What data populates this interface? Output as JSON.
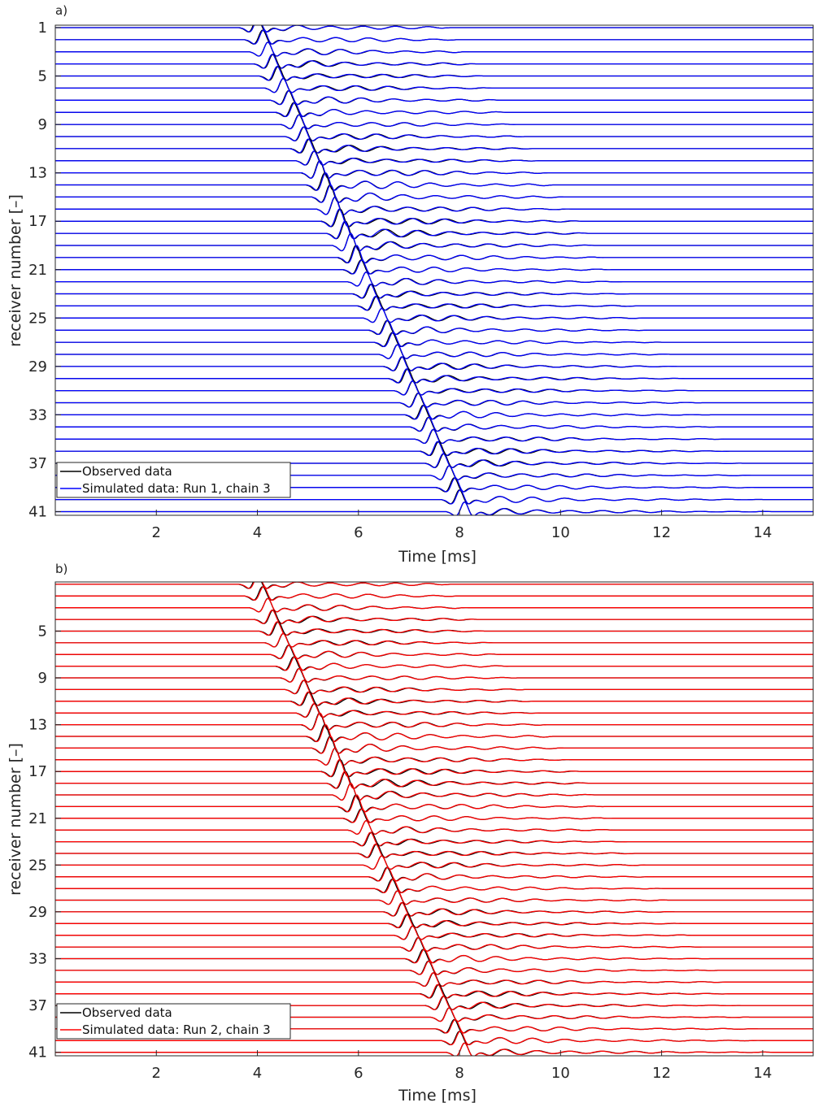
{
  "chart_data": [
    {
      "type": "line",
      "panel_label": "a)",
      "xlabel": "Time [ms]",
      "ylabel": "receiver number [–]",
      "xlim": [
        0,
        15
      ],
      "xticks": [
        2,
        4,
        6,
        8,
        10,
        12,
        14
      ],
      "ylim": [
        41.3,
        0.8
      ],
      "yticks": [
        1,
        5,
        9,
        13,
        17,
        21,
        25,
        29,
        33,
        37,
        41
      ],
      "receivers": 41,
      "first_arrival_ms": {
        "receiver_1": 4.0,
        "receiver_41": 8.1
      },
      "record_end_ms": {
        "receiver_1": 7.6,
        "receiver_41": 14.0
      },
      "series": [
        {
          "name": "Observed data",
          "color": "#000000"
        },
        {
          "name": "Simulated data: Run 1, chain 3",
          "color": "#0000ff"
        }
      ],
      "legend": "bottom-left",
      "grid": false
    },
    {
      "type": "line",
      "panel_label": "b)",
      "xlabel": "Time [ms]",
      "ylabel": "receiver number [–]",
      "xlim": [
        0,
        15
      ],
      "xticks": [
        2,
        4,
        6,
        8,
        10,
        12,
        14
      ],
      "ylim": [
        41.3,
        0.8
      ],
      "yticks": [
        5,
        9,
        13,
        17,
        21,
        25,
        29,
        33,
        37,
        41
      ],
      "receivers": 41,
      "first_arrival_ms": {
        "receiver_1": 4.0,
        "receiver_41": 8.1
      },
      "record_end_ms": {
        "receiver_1": 7.6,
        "receiver_41": 14.0
      },
      "series": [
        {
          "name": "Observed data",
          "color": "#000000"
        },
        {
          "name": "Simulated data: Run 2, chain 3",
          "color": "#ff0000"
        }
      ],
      "legend": "bottom-left",
      "grid": false
    }
  ]
}
